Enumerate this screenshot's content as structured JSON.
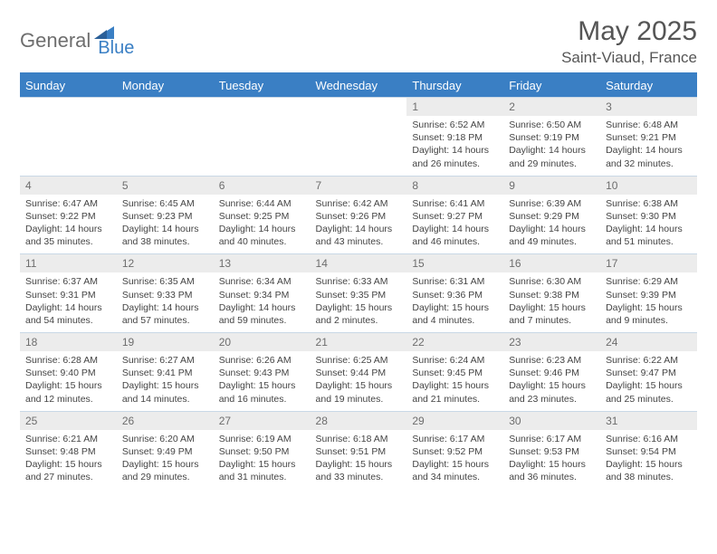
{
  "brand": {
    "part1": "General",
    "part2": "Blue"
  },
  "title": "May 2025",
  "location": "Saint-Viaud, France",
  "colors": {
    "header_bg": "#3a7fc4",
    "header_text": "#ffffff",
    "daynum_bg": "#ececec",
    "daynum_text": "#6d6d6d",
    "body_text": "#444444",
    "logo_gray": "#6e6e6e",
    "logo_blue": "#3a7fc4",
    "row_border": "#c9d8e6"
  },
  "day_headers": [
    "Sunday",
    "Monday",
    "Tuesday",
    "Wednesday",
    "Thursday",
    "Friday",
    "Saturday"
  ],
  "weeks": [
    [
      null,
      null,
      null,
      null,
      {
        "n": "1",
        "sr": "6:52 AM",
        "ss": "9:18 PM",
        "dl": "14 hours and 26 minutes."
      },
      {
        "n": "2",
        "sr": "6:50 AM",
        "ss": "9:19 PM",
        "dl": "14 hours and 29 minutes."
      },
      {
        "n": "3",
        "sr": "6:48 AM",
        "ss": "9:21 PM",
        "dl": "14 hours and 32 minutes."
      }
    ],
    [
      {
        "n": "4",
        "sr": "6:47 AM",
        "ss": "9:22 PM",
        "dl": "14 hours and 35 minutes."
      },
      {
        "n": "5",
        "sr": "6:45 AM",
        "ss": "9:23 PM",
        "dl": "14 hours and 38 minutes."
      },
      {
        "n": "6",
        "sr": "6:44 AM",
        "ss": "9:25 PM",
        "dl": "14 hours and 40 minutes."
      },
      {
        "n": "7",
        "sr": "6:42 AM",
        "ss": "9:26 PM",
        "dl": "14 hours and 43 minutes."
      },
      {
        "n": "8",
        "sr": "6:41 AM",
        "ss": "9:27 PM",
        "dl": "14 hours and 46 minutes."
      },
      {
        "n": "9",
        "sr": "6:39 AM",
        "ss": "9:29 PM",
        "dl": "14 hours and 49 minutes."
      },
      {
        "n": "10",
        "sr": "6:38 AM",
        "ss": "9:30 PM",
        "dl": "14 hours and 51 minutes."
      }
    ],
    [
      {
        "n": "11",
        "sr": "6:37 AM",
        "ss": "9:31 PM",
        "dl": "14 hours and 54 minutes."
      },
      {
        "n": "12",
        "sr": "6:35 AM",
        "ss": "9:33 PM",
        "dl": "14 hours and 57 minutes."
      },
      {
        "n": "13",
        "sr": "6:34 AM",
        "ss": "9:34 PM",
        "dl": "14 hours and 59 minutes."
      },
      {
        "n": "14",
        "sr": "6:33 AM",
        "ss": "9:35 PM",
        "dl": "15 hours and 2 minutes."
      },
      {
        "n": "15",
        "sr": "6:31 AM",
        "ss": "9:36 PM",
        "dl": "15 hours and 4 minutes."
      },
      {
        "n": "16",
        "sr": "6:30 AM",
        "ss": "9:38 PM",
        "dl": "15 hours and 7 minutes."
      },
      {
        "n": "17",
        "sr": "6:29 AM",
        "ss": "9:39 PM",
        "dl": "15 hours and 9 minutes."
      }
    ],
    [
      {
        "n": "18",
        "sr": "6:28 AM",
        "ss": "9:40 PM",
        "dl": "15 hours and 12 minutes."
      },
      {
        "n": "19",
        "sr": "6:27 AM",
        "ss": "9:41 PM",
        "dl": "15 hours and 14 minutes."
      },
      {
        "n": "20",
        "sr": "6:26 AM",
        "ss": "9:43 PM",
        "dl": "15 hours and 16 minutes."
      },
      {
        "n": "21",
        "sr": "6:25 AM",
        "ss": "9:44 PM",
        "dl": "15 hours and 19 minutes."
      },
      {
        "n": "22",
        "sr": "6:24 AM",
        "ss": "9:45 PM",
        "dl": "15 hours and 21 minutes."
      },
      {
        "n": "23",
        "sr": "6:23 AM",
        "ss": "9:46 PM",
        "dl": "15 hours and 23 minutes."
      },
      {
        "n": "24",
        "sr": "6:22 AM",
        "ss": "9:47 PM",
        "dl": "15 hours and 25 minutes."
      }
    ],
    [
      {
        "n": "25",
        "sr": "6:21 AM",
        "ss": "9:48 PM",
        "dl": "15 hours and 27 minutes."
      },
      {
        "n": "26",
        "sr": "6:20 AM",
        "ss": "9:49 PM",
        "dl": "15 hours and 29 minutes."
      },
      {
        "n": "27",
        "sr": "6:19 AM",
        "ss": "9:50 PM",
        "dl": "15 hours and 31 minutes."
      },
      {
        "n": "28",
        "sr": "6:18 AM",
        "ss": "9:51 PM",
        "dl": "15 hours and 33 minutes."
      },
      {
        "n": "29",
        "sr": "6:17 AM",
        "ss": "9:52 PM",
        "dl": "15 hours and 34 minutes."
      },
      {
        "n": "30",
        "sr": "6:17 AM",
        "ss": "9:53 PM",
        "dl": "15 hours and 36 minutes."
      },
      {
        "n": "31",
        "sr": "6:16 AM",
        "ss": "9:54 PM",
        "dl": "15 hours and 38 minutes."
      }
    ]
  ],
  "labels": {
    "sunrise": "Sunrise: ",
    "sunset": "Sunset: ",
    "daylight": "Daylight: "
  }
}
